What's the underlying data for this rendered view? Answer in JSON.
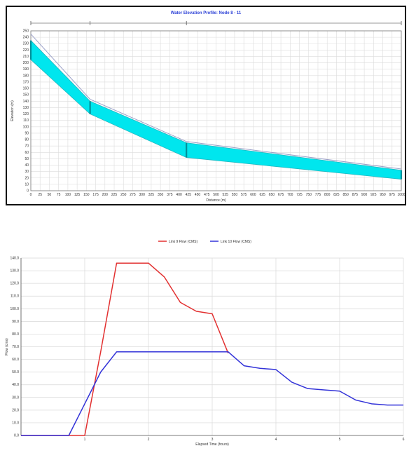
{
  "chart_data": [
    {
      "type": "area",
      "title": "Water Elevation Profile: Node 8 - 11",
      "xlabel": "Distance (m)",
      "ylabel": "Elevation (m)",
      "xlim": [
        0,
        1000
      ],
      "ylim": [
        0,
        250
      ],
      "grid": true,
      "node_markers": [
        0,
        160,
        420,
        1000
      ],
      "series": [
        {
          "x": [
            0,
            160,
            420,
            1000
          ],
          "values": [
            205,
            120,
            52,
            18
          ]
        },
        {
          "x": [
            0,
            160,
            420,
            1000
          ],
          "values": [
            235,
            140,
            75,
            32
          ]
        },
        {
          "x": [
            0,
            160,
            420,
            1000
          ],
          "values": [
            245,
            143,
            77,
            34
          ]
        }
      ],
      "colors": {
        "fill": "#00e6ee",
        "edge": "#008f99",
        "line": "#9aa0c8",
        "frame": "#111111",
        "title": "#2a3fd6"
      }
    },
    {
      "type": "line",
      "xlabel": "Elapsed Time (hours)",
      "ylabel": "Flow (cms)",
      "xlim": [
        0,
        6
      ],
      "ylim": [
        0,
        140
      ],
      "grid": true,
      "legend_position": "top",
      "x_ticks": [
        "1",
        "2",
        "3",
        "4",
        "5",
        "6"
      ],
      "y_ticks": [
        "0.0",
        "10.0",
        "20.0",
        "30.0",
        "40.0",
        "50.0",
        "60.0",
        "70.0",
        "80.0",
        "90.0",
        "100.0",
        "110.0",
        "120.0",
        "130.0",
        "140.0"
      ],
      "series": [
        {
          "name": "Link 9 Flow (CMS)",
          "color": "#e23030",
          "x": [
            0,
            0.25,
            0.5,
            0.75,
            1.0,
            1.25,
            1.5,
            1.75,
            2.0,
            2.25,
            2.5,
            2.75,
            3.0,
            3.25
          ],
          "values": [
            0,
            0,
            0,
            0,
            0,
            66,
            136,
            136,
            136,
            125,
            105,
            98,
            96,
            65
          ]
        },
        {
          "name": "Link 10 Flow (CMS)",
          "color": "#3232d8",
          "x": [
            0,
            0.25,
            0.5,
            0.75,
            1.0,
            1.25,
            1.5,
            1.75,
            2.0,
            2.25,
            2.5,
            2.75,
            3.0,
            3.25,
            3.5,
            3.75,
            4.0,
            4.25,
            4.5,
            4.75,
            5.0,
            5.25,
            5.5,
            5.75,
            6.0
          ],
          "values": [
            0,
            0,
            0,
            0,
            25,
            50,
            66,
            66,
            66,
            66,
            66,
            66,
            66,
            66,
            55,
            53,
            52,
            42,
            37,
            36,
            35,
            28,
            25,
            24,
            24
          ]
        }
      ]
    }
  ]
}
